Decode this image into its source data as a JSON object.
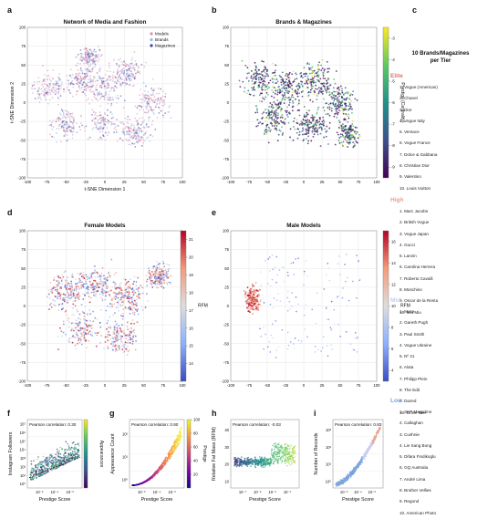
{
  "panel_letters": [
    "a",
    "b",
    "c",
    "d",
    "e",
    "f",
    "g",
    "h",
    "i"
  ],
  "colors": {
    "models": "#e88aa6",
    "brands": "#9bb6ea",
    "magazines": "#3a4aa0",
    "elite": "#e2746a",
    "high": "#e8a08a",
    "mid": "#c5cdf0",
    "low": "#7aa4dd"
  },
  "chart_data": [
    {
      "id": "a",
      "type": "scatter",
      "title": "Network of Media and Fashion",
      "xlabel": "t-SNE Dimension 1",
      "ylabel": "t-SNE Dimension 2",
      "xlim": [
        -100,
        100
      ],
      "ylim": [
        -100,
        100
      ],
      "xticks": [
        -100,
        -75,
        -50,
        -25,
        0,
        25,
        50,
        75,
        100
      ],
      "yticks": [
        -100,
        -75,
        -50,
        -25,
        0,
        25,
        50,
        75,
        100
      ],
      "grid": true,
      "legend_position": "top-right",
      "series": [
        {
          "name": "Models"
        },
        {
          "name": "Brands"
        },
        {
          "name": "Magazines"
        }
      ]
    },
    {
      "id": "b",
      "type": "scatter",
      "title": "Brands & Magazines",
      "xlim": [
        -100,
        100
      ],
      "ylim": [
        -100,
        100
      ],
      "xticks": [
        -100,
        -75,
        -50,
        -25,
        0,
        25,
        50,
        75,
        100
      ],
      "yticks": [
        -100,
        -75,
        -50,
        -25,
        0,
        25,
        50,
        75,
        100
      ],
      "grid": true,
      "colorbar": {
        "label": "Prestige (Centrality)",
        "min": -9.5,
        "max": -2.5,
        "ticks": [
          -3,
          -4,
          -5,
          -6,
          -7,
          -8,
          -9
        ],
        "colormap": "viridis"
      }
    },
    {
      "id": "d",
      "type": "scatter",
      "title": "Female Models",
      "xlim": [
        -100,
        100
      ],
      "ylim": [
        -100,
        100
      ],
      "xticks": [
        -100,
        -75,
        -50,
        -25,
        0,
        25,
        50,
        75,
        100
      ],
      "yticks": [
        -100,
        -75,
        -50,
        -25,
        0,
        25,
        50,
        75,
        100
      ],
      "grid": true,
      "colorbar": {
        "label": "RFM",
        "min": 13,
        "max": 21.5,
        "ticks": [
          21,
          20,
          19,
          18,
          17,
          16,
          15,
          14
        ],
        "colormap": "coolwarm"
      }
    },
    {
      "id": "e",
      "type": "scatter",
      "title": "Male Models",
      "xlim": [
        -100,
        100
      ],
      "ylim": [
        -100,
        100
      ],
      "xticks": [
        -100,
        -75,
        -50,
        -25,
        0,
        25,
        50,
        75,
        100
      ],
      "yticks": [
        -100,
        -75,
        -50,
        -25,
        0,
        25,
        50,
        75,
        100
      ],
      "grid": true,
      "colorbar": {
        "label": "RFM",
        "min": 3,
        "max": 17,
        "ticks": [
          16,
          14,
          12,
          10,
          8,
          6,
          4
        ],
        "colormap": "coolwarm"
      }
    },
    {
      "id": "f",
      "type": "scatter",
      "xlabel": "Prestige Score",
      "ylabel": "Instagram Followers",
      "annotation": "Pearson correlation: 0.30",
      "xscale": "log",
      "yscale": "log",
      "xticks": [
        "10⁻⁶",
        "10⁻⁴",
        "10⁻²"
      ],
      "yticks": [
        "10⁰",
        "10¹",
        "10²",
        "10³",
        "10⁴",
        "10⁵",
        "10⁶",
        "10⁷"
      ],
      "colorbar": {
        "label": "Appearances",
        "colormap": "viridis"
      }
    },
    {
      "id": "g",
      "type": "scatter",
      "xlabel": "Prestige Score",
      "ylabel": "Appearance Count",
      "annotation": "Pearson correlation: 0.80",
      "xscale": "log",
      "yscale": "log",
      "xticks": [
        "10⁻⁶",
        "10⁻⁴",
        "10⁻²"
      ],
      "yticks": [
        "10⁰",
        "10¹",
        "10²"
      ],
      "colorbar": {
        "label": "Prestige",
        "min": 0,
        "max": 100,
        "ticks": [
          100,
          80,
          60,
          40,
          20
        ],
        "colormap": "plasma"
      }
    },
    {
      "id": "h",
      "type": "scatter",
      "xlabel": "Prestige Score",
      "ylabel": "Relative Fat Mass (RFM)",
      "annotation": "Pearson correlation: -0.03",
      "xscale": "log",
      "ylim": [
        5,
        45
      ],
      "xticks": [
        "10⁻⁷",
        "10⁻⁵",
        "10⁻³",
        "10⁻¹"
      ],
      "yticks": [
        10,
        20,
        30,
        40
      ]
    },
    {
      "id": "i",
      "type": "scatter",
      "xlabel": "Prestige Score",
      "ylabel": "Number of Records",
      "annotation": "Pearson correlation: 0.83",
      "xscale": "log",
      "yscale": "log",
      "xticks": [
        "10⁻⁶",
        "10⁻⁴",
        "10⁻²"
      ],
      "yticks": [
        "10⁰",
        "10¹",
        "10²",
        "10³"
      ]
    }
  ],
  "side_panel": {
    "title_line1": "10 Brands/Magazines",
    "title_line2": "per Tier",
    "tiers": [
      {
        "name": "Elite",
        "items": [
          "1. Vogue (American)",
          "2. Chanel",
          "3. Dior",
          "4. Vogue Italy",
          "5. Versace",
          "6. Vogue France",
          "7. Dolce & Gabbana",
          "8. Christian Dior",
          "9. Valentino",
          "10. Louis Vuitton"
        ]
      },
      {
        "name": "High",
        "items": [
          "1. Marc Jacobs",
          "2. British Vogue",
          "3. Vogue Japan",
          "4. Gucci",
          "5. Lanvin",
          "6. Carolina Herrera",
          "7. Roberto Cavalli",
          "8. Moschino",
          "9. Oscar de la Renta",
          "10. Miu Miu"
        ]
      },
      {
        "name": "Mid",
        "items": [
          "1. Muse",
          "2. Gareth Pugh",
          "3. Paul Smith",
          "4. Vogue Ukraine",
          "5. Nº 21",
          "6. Alaïa",
          "7. Philipp Plein",
          "8. The Edit",
          "9. Dazed",
          "10. Ohne Titel"
        ]
      },
      {
        "name": "Low",
        "items": [
          "1. SKP Magazine",
          "2. Callaghan",
          "3. Cushnie",
          "4. Lie Sang Bong",
          "5. Difara Findikoglu",
          "6. GQ Australia",
          "7. André Lima",
          "8. Brother Vellies",
          "9. Regond",
          "10. American Photo"
        ]
      }
    ]
  }
}
